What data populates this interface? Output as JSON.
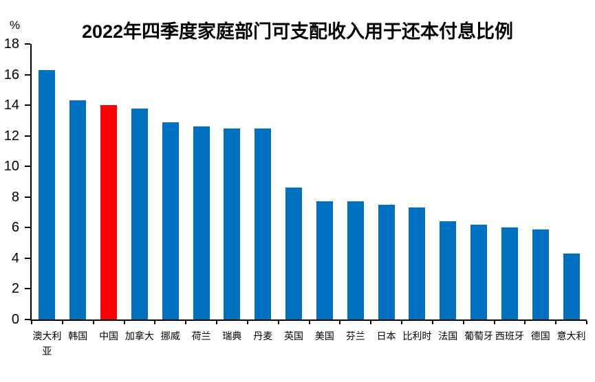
{
  "chart_data": {
    "type": "bar",
    "title": "2022年四季度家庭部门可支配收入用于还本付息比例",
    "unit_label": "%",
    "xlabel": "",
    "ylabel": "",
    "ylim": [
      0,
      18
    ],
    "yticks": [
      0,
      2,
      4,
      6,
      8,
      10,
      12,
      14,
      16,
      18
    ],
    "grid": "off",
    "legend": "none",
    "categories": [
      "澳大利亚",
      "韩国",
      "中国",
      "加拿大",
      "挪威",
      "荷兰",
      "瑞典",
      "丹麦",
      "英国",
      "美国",
      "芬兰",
      "日本",
      "比利时",
      "法国",
      "葡萄牙",
      "西班牙",
      "德国",
      "意大利"
    ],
    "values": [
      16.3,
      14.3,
      14.0,
      13.8,
      12.9,
      12.6,
      12.5,
      12.5,
      8.6,
      7.7,
      7.7,
      7.5,
      7.3,
      6.4,
      6.2,
      6.0,
      5.9,
      4.3
    ],
    "highlight": {
      "category": "中国",
      "index": 2
    },
    "colors": {
      "bar": "#0070C0",
      "highlight_bar": "#FF0000",
      "axis": "#000000",
      "title_text": "#000000"
    }
  }
}
